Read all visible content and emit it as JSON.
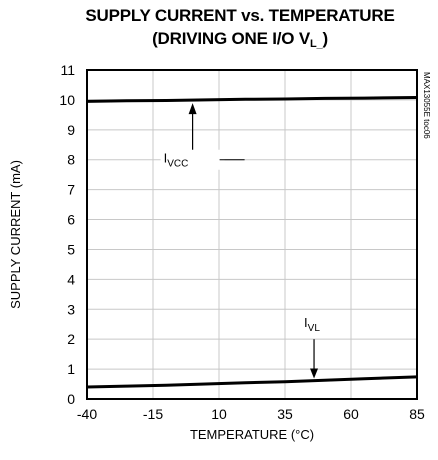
{
  "chart_data": {
    "type": "line",
    "title_line1": "SUPPLY CURRENT vs. TEMPERATURE",
    "title_line2_prefix": "(DRIVING ONE I/O V",
    "title_line2_sub": "L_",
    "title_line2_suffix": ")",
    "xlabel": "TEMPERATURE (°C)",
    "ylabel": "SUPPLY CURRENT (mA)",
    "xlim": [
      -40,
      85
    ],
    "ylim": [
      0,
      11
    ],
    "xticks": [
      -40,
      -15,
      10,
      35,
      60,
      85
    ],
    "yticks": [
      0,
      1,
      2,
      3,
      4,
      5,
      6,
      7,
      8,
      9,
      10,
      11
    ],
    "watermark": "MAX13055E toc06",
    "grid": true,
    "series": [
      {
        "name_main": "I",
        "name_sub": "VCC",
        "x": [
          -40,
          -25,
          -10,
          5,
          20,
          35,
          50,
          65,
          85
        ],
        "y": [
          9.95,
          9.97,
          9.98,
          10.0,
          10.02,
          10.03,
          10.05,
          10.06,
          10.08
        ]
      },
      {
        "name_main": "I",
        "name_sub": "VL",
        "x": [
          -40,
          -25,
          -10,
          5,
          20,
          35,
          50,
          65,
          85
        ],
        "y": [
          0.4,
          0.43,
          0.46,
          0.5,
          0.54,
          0.58,
          0.63,
          0.68,
          0.74
        ]
      }
    ]
  }
}
